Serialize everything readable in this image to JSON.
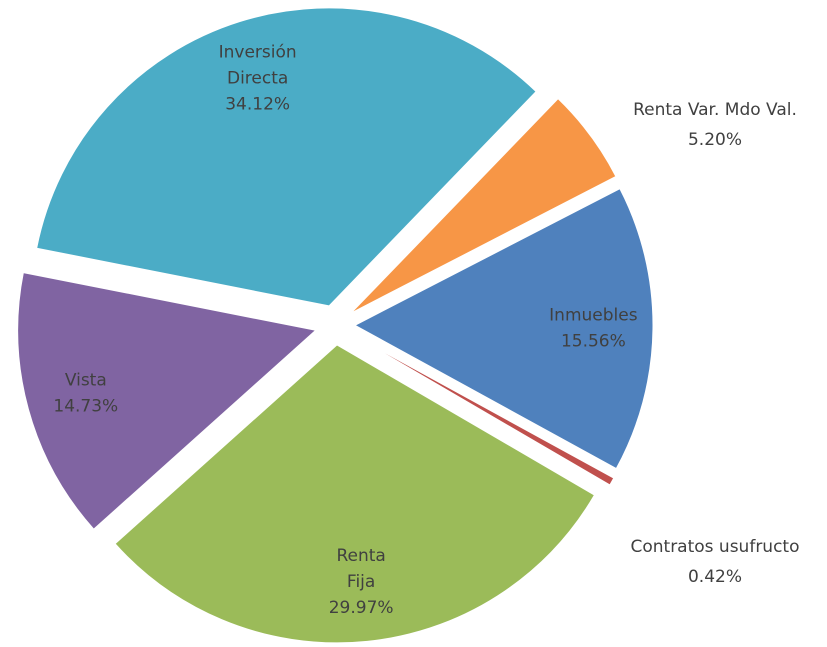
{
  "chart_data": {
    "type": "pie",
    "categories": [
      "Inversión Directa",
      "Renta Var. Mdo Val.",
      "Inmuebles",
      "Contratos usufructo",
      "Renta Fija",
      "Vista"
    ],
    "values": [
      34.12,
      5.2,
      15.56,
      0.42,
      29.97,
      14.73
    ],
    "value_labels": [
      "34.12%",
      "5.20%",
      "15.56%",
      "0.42%",
      "29.97%",
      "14.73%"
    ],
    "colors": [
      "#4bacc6",
      "#f79646",
      "#4f81bd",
      "#c0504d",
      "#9bbb59",
      "#8064a2"
    ],
    "exploded": true
  }
}
